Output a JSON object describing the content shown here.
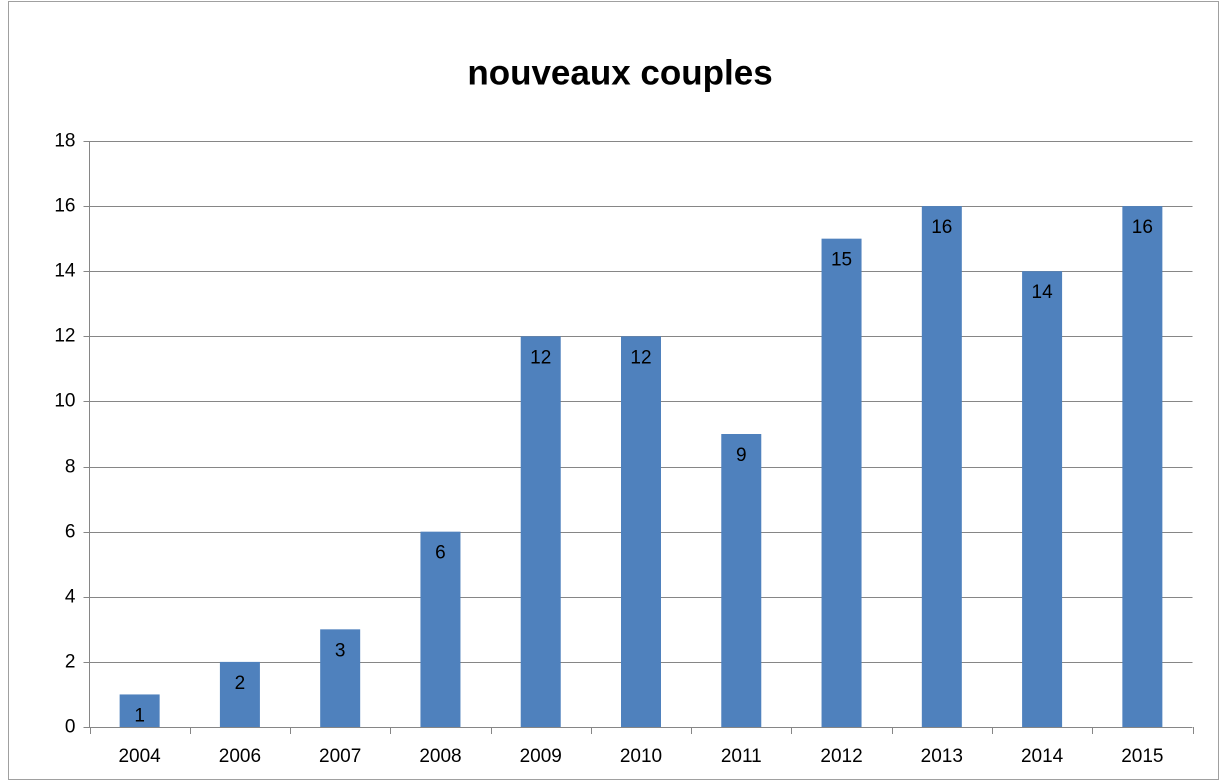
{
  "chart_data": {
    "type": "bar",
    "title": "nouveaux couples",
    "categories": [
      "2004",
      "2006",
      "2007",
      "2008",
      "2009",
      "2010",
      "2011",
      "2012",
      "2013",
      "2014",
      "2015"
    ],
    "values": [
      1,
      2,
      3,
      6,
      12,
      12,
      9,
      15,
      16,
      14,
      16
    ],
    "color": "#4f81bd",
    "ylim": [
      0,
      18
    ],
    "yticks": [
      0,
      2,
      4,
      6,
      8,
      10,
      12,
      14,
      16,
      18
    ],
    "grid": true
  }
}
